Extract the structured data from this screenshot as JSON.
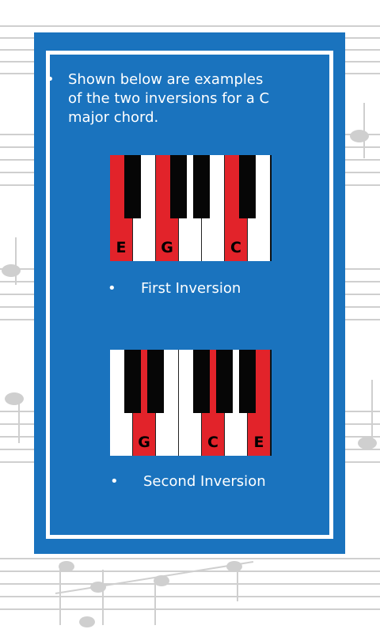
{
  "intro": {
    "bullet": "•",
    "text": "Shown below are examples of the two inversions for a C major chord."
  },
  "first_inversion": {
    "caption_bullet": "•",
    "caption": "First Inversion",
    "white_keys": [
      {
        "label": "E",
        "highlighted": true
      },
      {
        "label": "",
        "highlighted": false
      },
      {
        "label": "G",
        "highlighted": true
      },
      {
        "label": "",
        "highlighted": false
      },
      {
        "label": "",
        "highlighted": false
      },
      {
        "label": "C",
        "highlighted": true
      },
      {
        "label": "",
        "highlighted": false
      }
    ]
  },
  "second_inversion": {
    "caption_bullet": "•",
    "caption": "Second Inversion",
    "white_keys": [
      {
        "label": "",
        "highlighted": false
      },
      {
        "label": "G",
        "highlighted": true
      },
      {
        "label": "",
        "highlighted": false
      },
      {
        "label": "",
        "highlighted": false
      },
      {
        "label": "C",
        "highlighted": true
      },
      {
        "label": "",
        "highlighted": false
      },
      {
        "label": "E",
        "highlighted": true
      }
    ]
  },
  "colors": {
    "card_blue": "#1a73be",
    "highlight_red": "#e2232a"
  }
}
